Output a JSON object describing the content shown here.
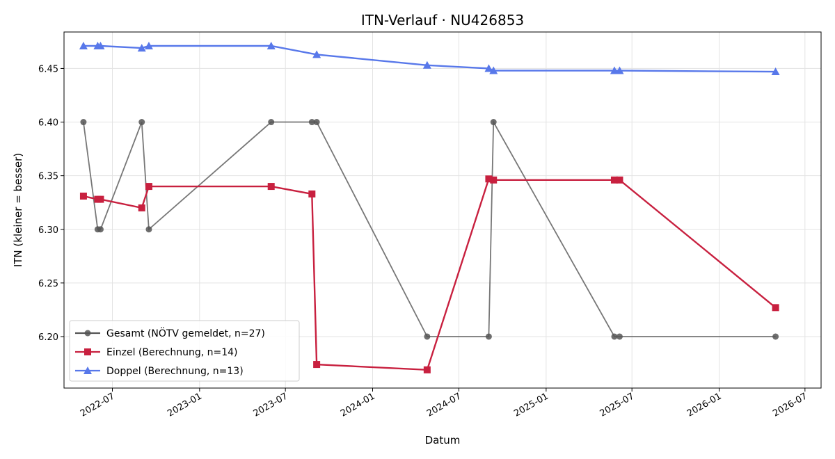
{
  "chart_data": {
    "type": "line",
    "title": "ITN-Verlauf · NU426853",
    "xlabel": "Datum",
    "ylabel": "ITN  (kleiner = besser)",
    "ylim": [
      6.152,
      6.484
    ],
    "yticks": [
      6.2,
      6.25,
      6.3,
      6.35,
      6.4,
      6.45
    ],
    "xlim": [
      "2022-03-21",
      "2026-08-04"
    ],
    "xticks": [
      "2022-07-01",
      "2023-01-01",
      "2023-07-01",
      "2024-01-01",
      "2024-07-01",
      "2025-01-01",
      "2025-07-01",
      "2026-01-01",
      "2026-07-01"
    ],
    "xtick_labels": [
      "2022-07",
      "2023-01",
      "2023-07",
      "2024-01",
      "2024-07",
      "2025-01",
      "2025-07",
      "2026-01",
      "2026-07"
    ],
    "grid": true,
    "legend_position": "lower-left",
    "series": [
      {
        "name": "Gesamt (NÖTV gemeldet, n=27)",
        "color": "#555555",
        "marker": "circle",
        "points": [
          [
            "2022-05-01",
            6.4
          ],
          [
            "2022-05-31",
            6.3
          ],
          [
            "2022-06-06",
            6.3
          ],
          [
            "2022-09-01",
            6.4
          ],
          [
            "2022-09-16",
            6.3
          ],
          [
            "2023-06-01",
            6.4
          ],
          [
            "2023-08-26",
            6.4
          ],
          [
            "2023-09-05",
            6.4
          ],
          [
            "2024-04-25",
            6.2
          ],
          [
            "2024-09-02",
            6.2
          ],
          [
            "2024-09-12",
            6.4
          ],
          [
            "2025-05-25",
            6.2
          ],
          [
            "2025-06-05",
            6.2
          ],
          [
            "2026-04-30",
            6.2
          ]
        ]
      },
      {
        "name": "Einzel (Berechnung, n=14)",
        "color": "#c8203f",
        "marker": "square",
        "points": [
          [
            "2022-05-01",
            6.331
          ],
          [
            "2022-05-31",
            6.328
          ],
          [
            "2022-06-06",
            6.328
          ],
          [
            "2022-09-01",
            6.32
          ],
          [
            "2022-09-16",
            6.34
          ],
          [
            "2023-06-01",
            6.34
          ],
          [
            "2023-08-26",
            6.333
          ],
          [
            "2023-09-05",
            6.174
          ],
          [
            "2024-04-25",
            6.169
          ],
          [
            "2024-09-02",
            6.347
          ],
          [
            "2024-09-12",
            6.346
          ],
          [
            "2025-05-25",
            6.346
          ],
          [
            "2025-06-05",
            6.346
          ],
          [
            "2026-04-30",
            6.227
          ]
        ]
      },
      {
        "name": "Doppel (Berechnung, n=13)",
        "color": "#5878ea",
        "marker": "triangle",
        "points": [
          [
            "2022-05-01",
            6.471
          ],
          [
            "2022-05-31",
            6.471
          ],
          [
            "2022-06-06",
            6.471
          ],
          [
            "2022-09-01",
            6.469
          ],
          [
            "2022-09-16",
            6.471
          ],
          [
            "2023-06-01",
            6.471
          ],
          [
            "2023-09-05",
            6.463
          ],
          [
            "2024-04-25",
            6.453
          ],
          [
            "2024-09-02",
            6.45
          ],
          [
            "2024-09-12",
            6.448
          ],
          [
            "2025-05-25",
            6.448
          ],
          [
            "2025-06-05",
            6.448
          ],
          [
            "2026-04-30",
            6.447
          ]
        ]
      }
    ]
  }
}
